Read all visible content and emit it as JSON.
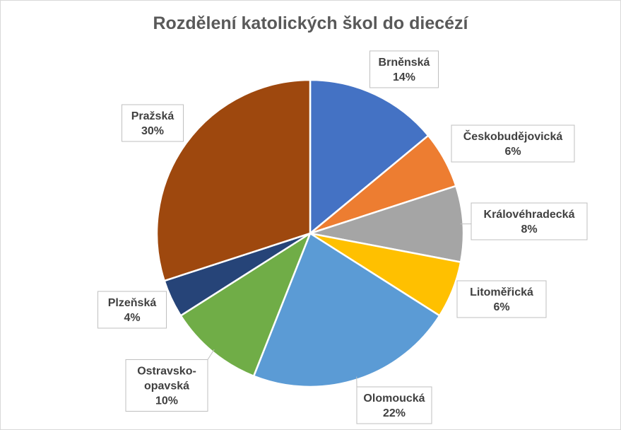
{
  "chart_data": {
    "type": "pie",
    "title": "Rozdělení katolických škol do diecézí",
    "slices": [
      {
        "label": "Brněnská",
        "label_lines": [
          "Brněnská"
        ],
        "value": 14,
        "value_label": "14%",
        "color": "#4472c4"
      },
      {
        "label": "Českobudějovická",
        "label_lines": [
          "Českobudějovická"
        ],
        "value": 6,
        "value_label": "6%",
        "color": "#ed7d31"
      },
      {
        "label": "Královéhradecká",
        "label_lines": [
          "Královéhradecká"
        ],
        "value": 8,
        "value_label": "8%",
        "color": "#a5a5a5"
      },
      {
        "label": "Litoměřická",
        "label_lines": [
          "Litoměřická"
        ],
        "value": 6,
        "value_label": "6%",
        "color": "#ffc000"
      },
      {
        "label": "Olomoucká",
        "label_lines": [
          "Olomoucká"
        ],
        "value": 22,
        "value_label": "22%",
        "color": "#5b9bd5"
      },
      {
        "label": "Ostravsko-opavská",
        "label_lines": [
          "Ostravsko-",
          "opavská"
        ],
        "value": 10,
        "value_label": "10%",
        "color": "#70ad47"
      },
      {
        "label": "Plzeňská",
        "label_lines": [
          "Plzeňská"
        ],
        "value": 4,
        "value_label": "4%",
        "color": "#264478"
      },
      {
        "label": "Pražská",
        "label_lines": [
          "Pražská"
        ],
        "value": 30,
        "value_label": "30%",
        "color": "#9e480e"
      }
    ]
  }
}
